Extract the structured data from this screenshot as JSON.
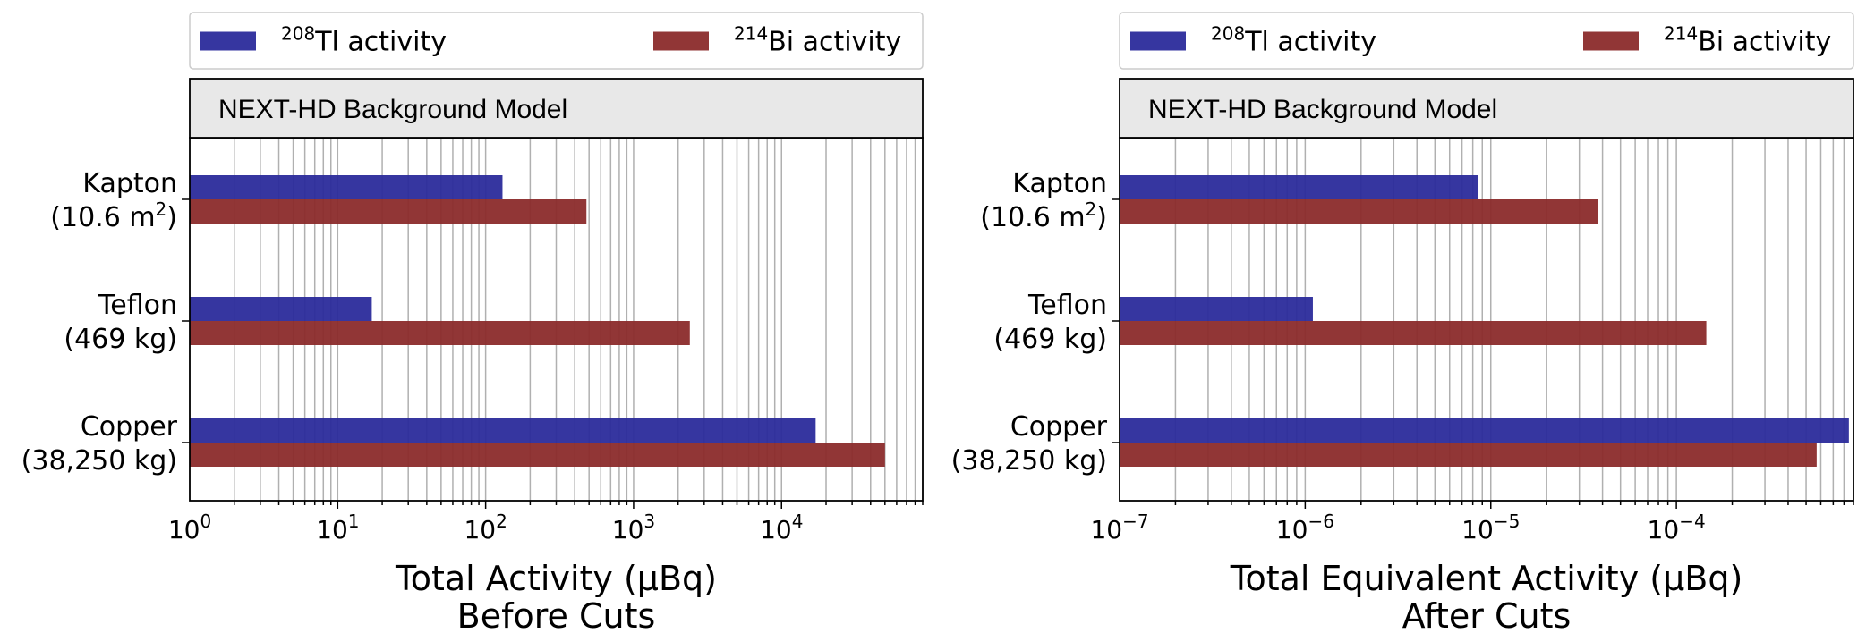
{
  "chart_data": [
    {
      "type": "bar",
      "orientation": "horizontal",
      "title": "NEXT-HD Background Model",
      "xlabel": [
        "Total Activity (μBq)",
        "Before Cuts"
      ],
      "xscale": "log",
      "xlim": [
        1,
        90000
      ],
      "xticks": [
        {
          "value": 1,
          "base": "10",
          "exp": "0"
        },
        {
          "value": 10,
          "base": "10",
          "exp": "1"
        },
        {
          "value": 100,
          "base": "10",
          "exp": "2"
        },
        {
          "value": 1000,
          "base": "10",
          "exp": "3"
        },
        {
          "value": 10000,
          "base": "10",
          "exp": "4"
        }
      ],
      "categories": [
        {
          "line1": "Kapton",
          "line2": "(10.6 m",
          "line2_sup": "2",
          "line2_end": ")"
        },
        {
          "line1": "Teflon",
          "line2": "(469 kg)",
          "line2_sup": "",
          "line2_end": ""
        },
        {
          "line1": "Copper",
          "line2": "(38,250 kg)",
          "line2_sup": "",
          "line2_end": ""
        }
      ],
      "series": [
        {
          "name_sup": "208",
          "name": "Tl activity",
          "color": "#2b2b9b",
          "values": [
            130,
            17,
            17000
          ]
        },
        {
          "name_sup": "214",
          "name": "Bi activity",
          "color": "#8b2b2b",
          "values": [
            480,
            2400,
            50000
          ]
        }
      ],
      "grid": "x-major-and-minor",
      "legend": "top"
    },
    {
      "type": "bar",
      "orientation": "horizontal",
      "title": "NEXT-HD Background Model",
      "xlabel": [
        "Total Equivalent Activity (μBq)",
        "After Cuts"
      ],
      "xscale": "log",
      "xlim": [
        1e-07,
        0.0009
      ],
      "xticks": [
        {
          "value": 1e-07,
          "base": "10",
          "exp": "−7"
        },
        {
          "value": 1e-06,
          "base": "10",
          "exp": "−6"
        },
        {
          "value": 1e-05,
          "base": "10",
          "exp": "−5"
        },
        {
          "value": 0.0001,
          "base": "10",
          "exp": "−4"
        }
      ],
      "categories": [
        {
          "line1": "Kapton",
          "line2": "(10.6 m",
          "line2_sup": "2",
          "line2_end": ")"
        },
        {
          "line1": "Teflon",
          "line2": "(469 kg)",
          "line2_sup": "",
          "line2_end": ""
        },
        {
          "line1": "Copper",
          "line2": "(38,250 kg)",
          "line2_sup": "",
          "line2_end": ""
        }
      ],
      "series": [
        {
          "name_sup": "208",
          "name": "Tl activity",
          "color": "#2b2b9b",
          "values": [
            8.5e-06,
            1.1e-06,
            0.00085
          ]
        },
        {
          "name_sup": "214",
          "name": "Bi activity",
          "color": "#8b2b2b",
          "values": [
            3.8e-05,
            0.000145,
            0.00057
          ]
        }
      ],
      "grid": "x-major-and-minor",
      "legend": "top"
    }
  ]
}
